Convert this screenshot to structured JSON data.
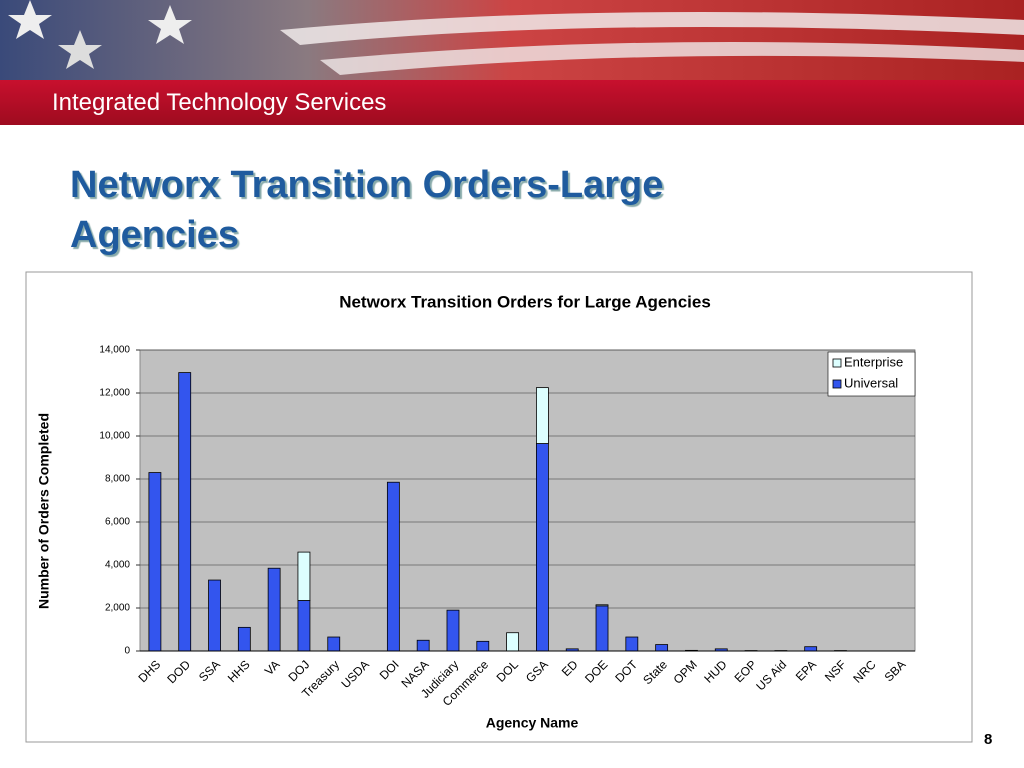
{
  "header": {
    "title": "Integrated Technology Services"
  },
  "slide": {
    "title": "Networx Transition Orders-Large Agencies",
    "page_number": "8"
  },
  "chart_data": {
    "type": "stacked_bar",
    "title": "Networx Transition Orders for Large Agencies",
    "x_label": "Agency Name",
    "y_label": "Number of Orders Completed",
    "categories": [
      "DHS",
      "DOD",
      "SSA",
      "HHS",
      "VA",
      "DOJ",
      "Treasury",
      "USDA",
      "DOI",
      "NASA",
      "Judiciary",
      "Commerce",
      "DOL",
      "GSA",
      "ED",
      "DOE",
      "DOT",
      "State",
      "OPM",
      "HUD",
      "EOP",
      "US Aid",
      "EPA",
      "NSF",
      "NRC",
      "SBA"
    ],
    "series": [
      {
        "name": "Universal",
        "color": "#3355ee",
        "values": [
          8300,
          12950,
          3300,
          1100,
          3850,
          2350,
          650,
          0,
          7850,
          500,
          1900,
          450,
          0,
          9650,
          100,
          2100,
          650,
          300,
          30,
          100,
          20,
          20,
          200,
          20,
          0,
          0
        ]
      },
      {
        "name": "Enterprise",
        "color": "#ddffff",
        "values": [
          0,
          0,
          0,
          0,
          0,
          2250,
          0,
          0,
          0,
          0,
          0,
          0,
          850,
          2600,
          0,
          50,
          0,
          0,
          0,
          0,
          0,
          0,
          0,
          0,
          0,
          0
        ]
      }
    ],
    "ylim": [
      0,
      14000
    ],
    "yticks": [
      0,
      {
        "value": 2000,
        "label": "2,000"
      },
      {
        "value": 4000,
        "label": "4,000"
      },
      {
        "value": 6000,
        "label": "6,000"
      },
      {
        "value": 8000,
        "label": "8,000"
      },
      {
        "value": 10000,
        "label": "10,000"
      },
      {
        "value": 12000,
        "label": "12,000"
      },
      {
        "value": 14000,
        "label": "14,000"
      }
    ],
    "grid": true,
    "legend": "top-right"
  }
}
